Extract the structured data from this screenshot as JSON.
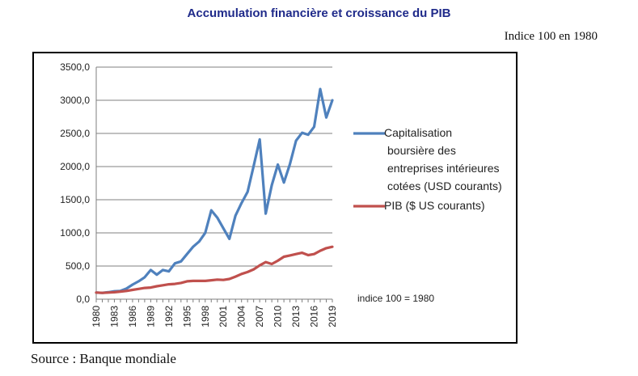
{
  "header": {
    "title": "Accumulation financière et croissance du PIB",
    "subtitle": "Indice 100 en 1980"
  },
  "footer": {
    "source": "Source : Banque mondiale"
  },
  "chart_data": {
    "type": "line",
    "title": "",
    "xlabel": "",
    "ylabel": "",
    "ylim": [
      0,
      3500
    ],
    "yticks": [
      "0,0",
      "500,0",
      "1000,0",
      "1500,0",
      "2000,0",
      "2500,0",
      "3000,0",
      "3500,0"
    ],
    "ytick_values": [
      0,
      500,
      1000,
      1500,
      2000,
      2500,
      3000,
      3500
    ],
    "xtick_labels": [
      "1980",
      "1983",
      "1986",
      "1989",
      "1992",
      "1995",
      "1998",
      "2001",
      "2004",
      "2007",
      "2010",
      "2013",
      "2016",
      "2019"
    ],
    "x": [
      1980,
      1981,
      1982,
      1983,
      1984,
      1985,
      1986,
      1987,
      1988,
      1989,
      1990,
      1991,
      1992,
      1993,
      1994,
      1995,
      1996,
      1997,
      1998,
      1999,
      2000,
      2001,
      2002,
      2003,
      2004,
      2005,
      2006,
      2007,
      2008,
      2009,
      2010,
      2011,
      2012,
      2013,
      2014,
      2015,
      2016,
      2017,
      2018,
      2019
    ],
    "grid": "horizontal",
    "legend_position": "right",
    "annotation": "indice 100 = 1980",
    "series": [
      {
        "name": "Capitalisation boursière des entreprises intérieures cotées (USD courants)",
        "color": "#4f81bd",
        "values": [
          100,
          95,
          105,
          120,
          125,
          160,
          220,
          270,
          330,
          440,
          370,
          440,
          420,
          540,
          570,
          680,
          790,
          870,
          1000,
          1340,
          1230,
          1070,
          910,
          1260,
          1450,
          1620,
          2010,
          2410,
          1290,
          1720,
          2030,
          1760,
          2040,
          2390,
          2510,
          2480,
          2600,
          3170,
          2740,
          3000
        ]
      },
      {
        "name": "PIB ($ US courants)",
        "color": "#c0504d",
        "values": [
          100,
          95,
          100,
          105,
          115,
          125,
          140,
          155,
          170,
          175,
          195,
          210,
          225,
          230,
          245,
          270,
          275,
          275,
          275,
          285,
          295,
          290,
          305,
          340,
          380,
          410,
          450,
          510,
          560,
          530,
          580,
          640,
          660,
          680,
          700,
          665,
          680,
          730,
          770,
          790
        ]
      }
    ]
  }
}
